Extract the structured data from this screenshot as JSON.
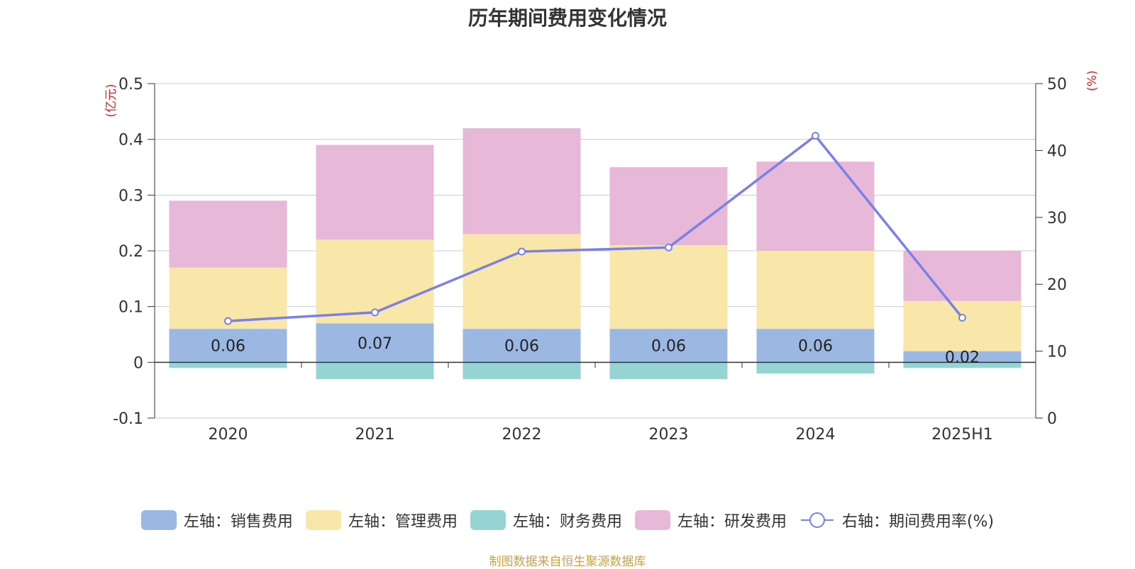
{
  "chart_data": {
    "type": "bar",
    "title": "历年期间费用变化情况",
    "categories": [
      "2020",
      "2021",
      "2022",
      "2023",
      "2024",
      "2025H1"
    ],
    "left_axis": {
      "unit": "(亿元)",
      "ylim": [
        -0.1,
        0.5
      ],
      "ticks": [
        "-0.1",
        "0",
        "0.1",
        "0.2",
        "0.3",
        "0.4",
        "0.5"
      ]
    },
    "right_axis": {
      "unit": "(%)",
      "ylim": [
        0,
        50
      ],
      "ticks": [
        "0",
        "10",
        "20",
        "30",
        "40",
        "50"
      ]
    },
    "grid": true,
    "legend_position": "bottom",
    "series": [
      {
        "name": "左轴：销售费用",
        "axis": "left",
        "type": "bar",
        "color": "#9bb8e2",
        "values": [
          0.06,
          0.07,
          0.06,
          0.06,
          0.06,
          0.02
        ],
        "labels": [
          "0.06",
          "0.07",
          "0.06",
          "0.06",
          "0.06",
          "0.02"
        ]
      },
      {
        "name": "左轴：管理费用",
        "axis": "left",
        "type": "bar",
        "color": "#f8e7a8",
        "values": [
          0.11,
          0.15,
          0.17,
          0.15,
          0.14,
          0.09
        ]
      },
      {
        "name": "左轴：财务费用",
        "axis": "left",
        "type": "bar",
        "color": "#96d3d3",
        "values": [
          -0.01,
          -0.03,
          -0.03,
          -0.03,
          -0.02,
          -0.01
        ]
      },
      {
        "name": "左轴：研发费用",
        "axis": "left",
        "type": "bar",
        "color": "#e8b8d8",
        "values": [
          0.12,
          0.17,
          0.19,
          0.14,
          0.16,
          0.09
        ]
      },
      {
        "name": "右轴：期间费用率(%)",
        "axis": "right",
        "type": "line",
        "color": "#7b7fe8",
        "values": [
          14.5,
          15.8,
          24.9,
          25.5,
          42.2,
          15.0
        ]
      }
    ]
  },
  "source_note": "制图数据来自恒生聚源数据库"
}
